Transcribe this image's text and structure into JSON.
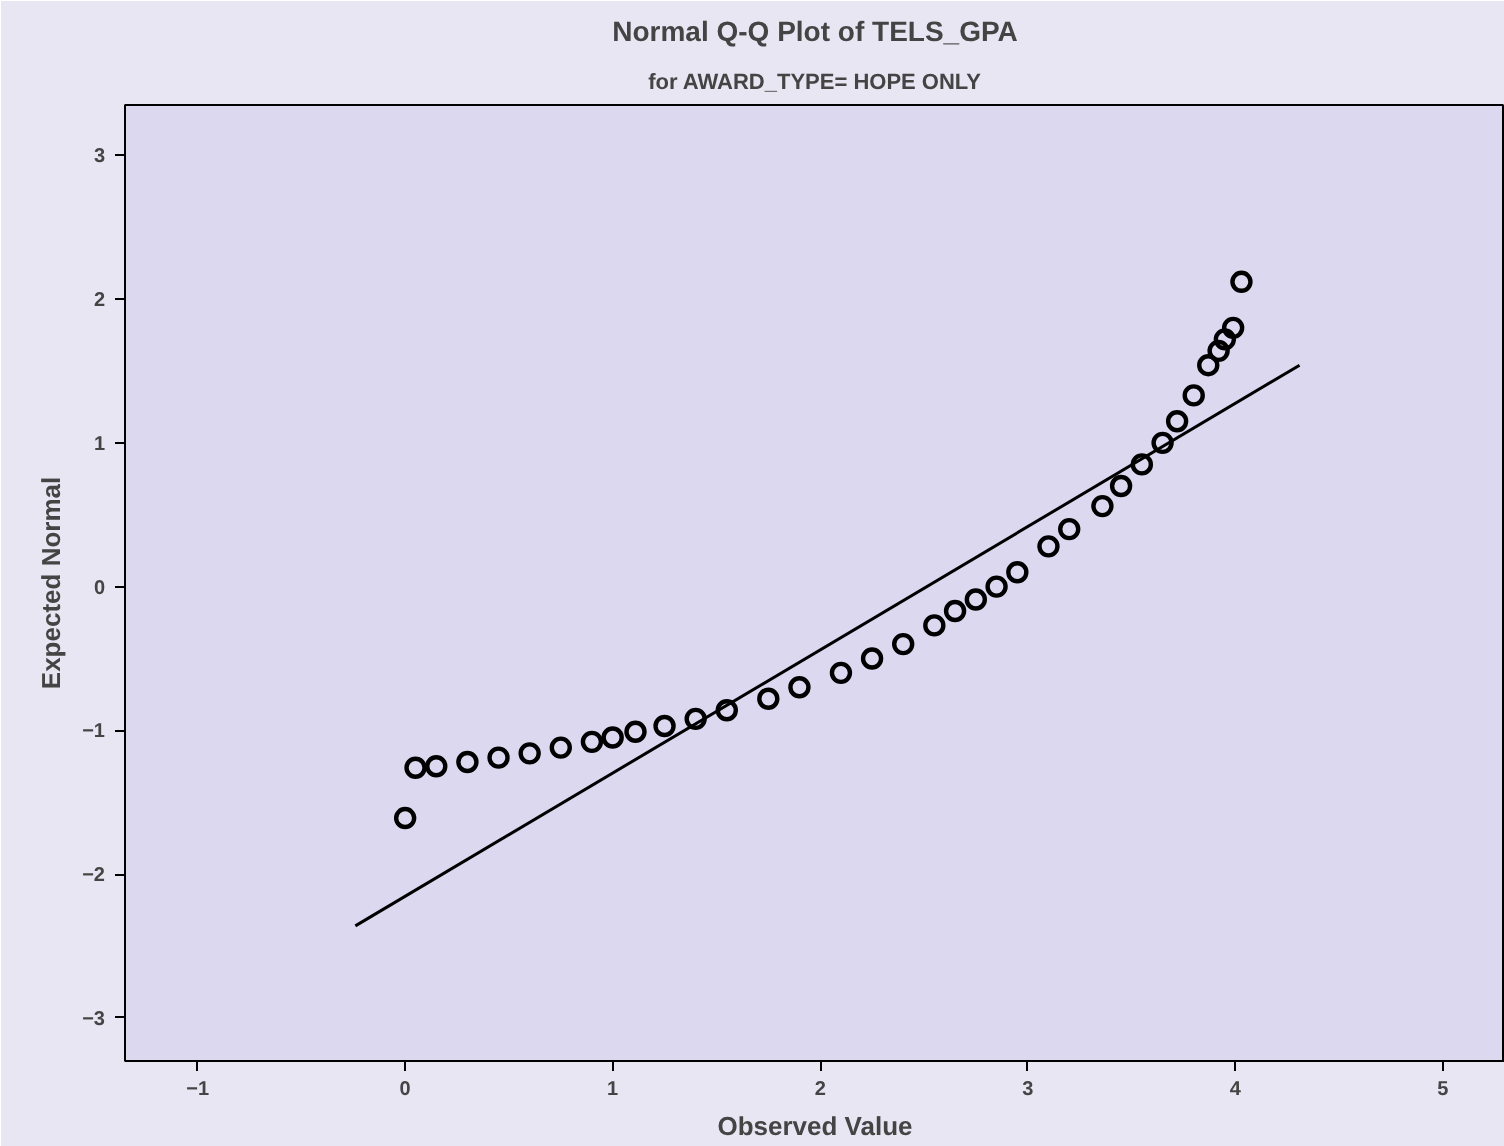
{
  "chart_data": {
    "type": "scatter",
    "title": "Normal Q-Q Plot of TELS_GPA",
    "subtitle": "for AWARD_TYPE= HOPE ONLY",
    "xlabel": "Observed Value",
    "ylabel": "Expected Normal",
    "xlim": [
      -1.35,
      5.3
    ],
    "ylim": [
      -3.3,
      3.35
    ],
    "xticks": [
      -1,
      0,
      1,
      2,
      3,
      4,
      5
    ],
    "yticks": [
      -3,
      -2,
      -1,
      0,
      1,
      2,
      3
    ],
    "grid": false,
    "series": [
      {
        "color": "#000000",
        "marker": "circle",
        "x": [
          0.0,
          0.05,
          0.15,
          0.3,
          0.45,
          0.6,
          0.75,
          0.9,
          1.0,
          1.11,
          1.25,
          1.4,
          1.55,
          1.75,
          1.9,
          2.1,
          2.25,
          2.4,
          2.55,
          2.65,
          2.75,
          2.85,
          2.95,
          3.1,
          3.2,
          3.36,
          3.45,
          3.55,
          3.65,
          3.72,
          3.8,
          3.87,
          3.92,
          3.95,
          3.99,
          4.03
        ],
        "values": [
          -1.61,
          -1.26,
          -1.25,
          -1.22,
          -1.19,
          -1.16,
          -1.12,
          -1.08,
          -1.05,
          -1.01,
          -0.97,
          -0.92,
          -0.86,
          -0.78,
          -0.7,
          -0.6,
          -0.5,
          -0.4,
          -0.27,
          -0.17,
          -0.09,
          0.0,
          0.1,
          0.28,
          0.4,
          0.56,
          0.7,
          0.85,
          1.0,
          1.15,
          1.33,
          1.54,
          1.64,
          1.72,
          1.8,
          2.12
        ]
      },
      {
        "type": "line",
        "color": "#000000",
        "x": [
          -0.24,
          4.31
        ],
        "values": [
          -2.36,
          1.54
        ]
      }
    ]
  }
}
